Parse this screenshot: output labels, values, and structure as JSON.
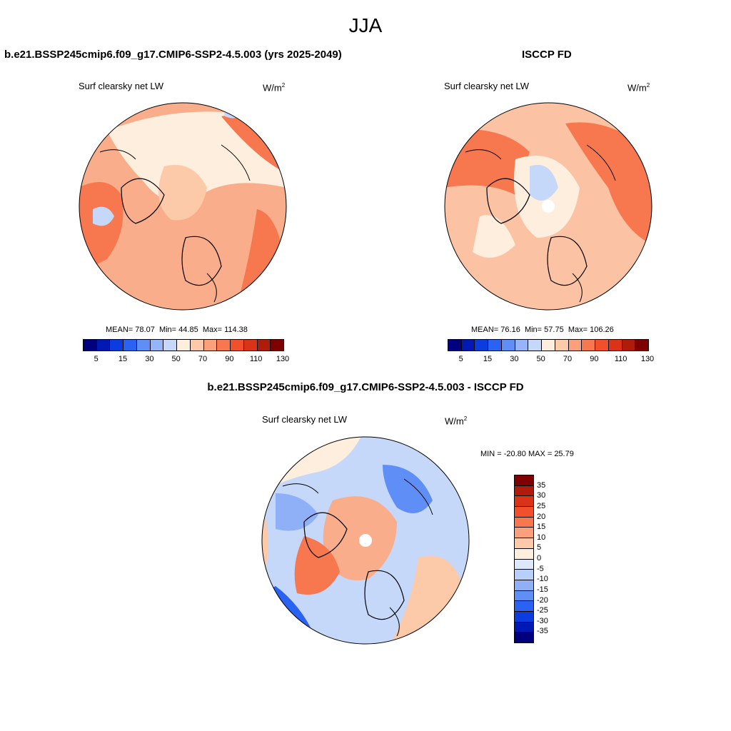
{
  "season": "JJA",
  "panels": [
    {
      "title": "b.e21.BSSP245cmip6.f09_g17.CMIP6-SSP2-4.5.003 (yrs 2025-2049)",
      "variable": "Surf clearsky net LW",
      "units_base": "W/m",
      "units_exp": "2",
      "mean_label": "MEAN=",
      "mean": "78.07",
      "min_label": "Min=",
      "min": "44.85",
      "max_label": "Max=",
      "max": "114.38"
    },
    {
      "title": "ISCCP FD",
      "variable": "Surf clearsky net LW",
      "units_base": "W/m",
      "units_exp": "2",
      "mean_label": "MEAN=",
      "mean": "76.16",
      "min_label": "Min=",
      "min": "57.75",
      "max_label": "Max=",
      "max": "106.26"
    }
  ],
  "diff": {
    "title": "b.e21.BSSP245cmip6.f09_g17.CMIP6-SSP2-4.5.003 - ISCCP FD",
    "variable": "Surf clearsky net LW",
    "units_base": "W/m",
    "units_exp": "2",
    "minmax": "MIN = -20.80 MAX =  25.79"
  },
  "colorbar": {
    "colors": [
      "#00007f",
      "#0018b4",
      "#0a3ce0",
      "#2a62f4",
      "#5f8ef6",
      "#95b5f8",
      "#c6d8fa",
      "#fdeedd",
      "#fccaa8",
      "#fba07a",
      "#f7774f",
      "#f1502d",
      "#d93418",
      "#b01c0c",
      "#7f0000"
    ],
    "tick_labels": [
      "5",
      "15",
      "30",
      "50",
      "70",
      "90",
      "110",
      "130"
    ]
  },
  "diff_colorbar": {
    "colors": [
      "#7f0000",
      "#b01c0c",
      "#d93418",
      "#f1502d",
      "#f7774f",
      "#fba07a",
      "#fccaa8",
      "#fdeedd",
      "#dde9fb",
      "#b7cff9",
      "#8fb0f7",
      "#5f8ef6",
      "#2a62f4",
      "#0a3ce0",
      "#0018b4",
      "#00007f"
    ],
    "tick_labels": [
      "35",
      "30",
      "25",
      "20",
      "15",
      "10",
      "5",
      "0",
      "-5",
      "-10",
      "-15",
      "-20",
      "-25",
      "-30",
      "-35"
    ]
  },
  "map_colors": {
    "panel1_base": "#f9ad8a",
    "panel2_base": "#fbc3a3",
    "diff_base": "#c6d8fa"
  }
}
